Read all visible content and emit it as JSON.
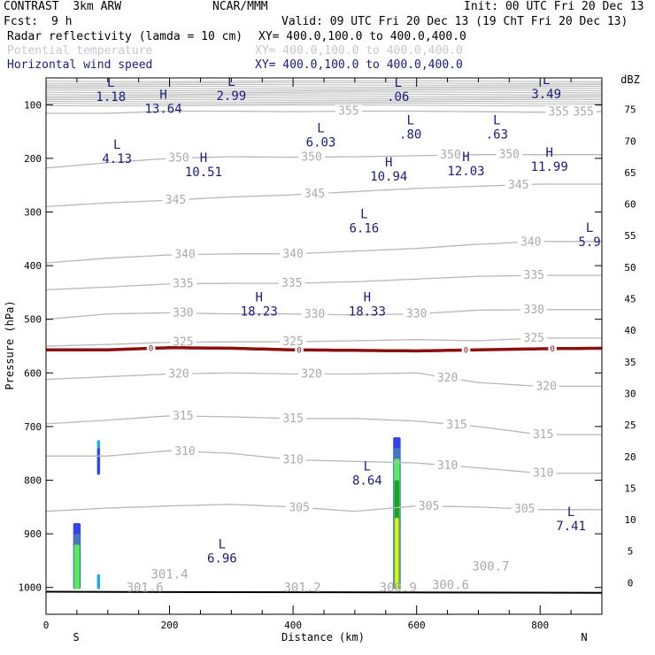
{
  "header": {
    "model": "CONTRAST  3km ARW",
    "org": "NCAR/MMM",
    "init": "Init: 00 UTC Fri 20 Dec 13",
    "fcst_label": "Fcst:",
    "fcst_value": "9 h",
    "valid": "Valid: 09 UTC Fri 20 Dec 13 (19 ChT Fri 20 Dec 13)"
  },
  "fields": [
    {
      "name": "Radar reflectivity (lamda = 10 cm)",
      "xy": "XY= 400.0,100.0 to 400.0,400.0",
      "color": "#000000"
    },
    {
      "name": "Potential temperature",
      "xy": "XY= 400.0,100.0 to 400.0,400.0",
      "color": "#c8c8c8"
    },
    {
      "name": "Horizontal wind speed",
      "xy": "XY= 400.0,100.0 to 400.0,400.0",
      "color": "#1a1a80"
    }
  ],
  "colorbar": {
    "unit": "dBZ",
    "levels": [
      "75",
      "70",
      "65",
      "60",
      "55",
      "50",
      "45",
      "40",
      "35",
      "30",
      "25",
      "20",
      "15",
      "10",
      "5",
      "0"
    ],
    "colors": [
      "#ffffff",
      "#bb88cc",
      "#993399",
      "#994455",
      "#aa0000",
      "#ee1111",
      "#ff5511",
      "#ff9944",
      "#ffcc33",
      "#eeee11",
      "#11aa11",
      "#55ee55",
      "#4477bb",
      "#3344ee",
      "#22aaee",
      "#77ffff",
      "#ffffff"
    ]
  },
  "chart_data": {
    "type": "cross-section",
    "xlabel": "Distance (km)",
    "ylabel": "Pressure (hPa)",
    "xlim": [
      0,
      900
    ],
    "ylim": [
      1050,
      50
    ],
    "x_ticks": [
      "0",
      "200",
      "400",
      "600",
      "800"
    ],
    "x_tick_values": [
      0,
      200,
      400,
      600,
      800
    ],
    "y_ticks": [
      "100",
      "200",
      "300",
      "400",
      "500",
      "600",
      "700",
      "800",
      "900",
      "1000"
    ],
    "y_tick_values": [
      100,
      200,
      300,
      400,
      500,
      600,
      700,
      800,
      900,
      1000
    ],
    "x_end_labels": [
      "S",
      "N"
    ],
    "theta_contours": [
      {
        "value": 355,
        "label": "355",
        "y": [
          116,
          116,
          112,
          112,
          113,
          112,
          112,
          113,
          114,
          113
        ],
        "labels_at": [
          490,
          830,
          870
        ]
      },
      {
        "value": 350,
        "label": "350",
        "y": [
          218,
          208,
          200,
          197,
          198,
          197,
          195,
          193,
          193,
          193
        ],
        "labels_at": [
          215,
          430,
          655,
          750
        ]
      },
      {
        "value": 345,
        "label": "345",
        "y": [
          290,
          283,
          278,
          272,
          268,
          262,
          256,
          252,
          248,
          248
        ],
        "labels_at": [
          210,
          435,
          765
        ]
      },
      {
        "value": 340,
        "label": "340",
        "y": [
          395,
          386,
          380,
          378,
          378,
          373,
          368,
          360,
          355,
          355
        ],
        "labels_at": [
          225,
          400,
          785
        ]
      },
      {
        "value": 335,
        "label": "335",
        "y": [
          445,
          440,
          434,
          433,
          433,
          430,
          425,
          420,
          418,
          418
        ],
        "labels_at": [
          222,
          398,
          790
        ]
      },
      {
        "value": 330,
        "label": "330",
        "y": [
          500,
          490,
          488,
          490,
          490,
          492,
          490,
          483,
          482,
          482
        ],
        "labels_at": [
          222,
          435,
          600,
          790
        ]
      },
      {
        "value": 325,
        "label": "325",
        "y": [
          550,
          547,
          543,
          542,
          542,
          540,
          538,
          540,
          535,
          535
        ],
        "labels_at": [
          222,
          400,
          790
        ]
      },
      {
        "value": 320,
        "label": "320",
        "y": [
          612,
          607,
          602,
          600,
          602,
          602,
          600,
          618,
          625,
          625
        ],
        "labels_at": [
          215,
          430,
          650,
          810
        ]
      },
      {
        "value": 315,
        "label": "315",
        "y": [
          695,
          688,
          680,
          682,
          685,
          685,
          690,
          700,
          715,
          715
        ],
        "labels_at": [
          222,
          400,
          665,
          805
        ]
      },
      {
        "value": 310,
        "label": "310",
        "y": [
          755,
          755,
          745,
          750,
          762,
          765,
          768,
          777,
          787,
          787
        ],
        "labels_at": [
          225,
          400,
          650,
          805
        ]
      },
      {
        "value": 305,
        "label": "305",
        "y": [
          858,
          852,
          848,
          845,
          850,
          858,
          848,
          850,
          855,
          855
        ],
        "labels_at": [
          410,
          620,
          775
        ]
      }
    ],
    "theta_centers": [
      {
        "x": 200,
        "p": 975,
        "text": "301.4"
      },
      {
        "x": 720,
        "p": 960,
        "text": "300.7"
      },
      {
        "x": 160,
        "p": 1000,
        "text": "301.6"
      },
      {
        "x": 415,
        "p": 1000,
        "text": "301.2"
      },
      {
        "x": 570,
        "p": 1000,
        "text": "300.9"
      },
      {
        "x": 655,
        "p": 995,
        "text": "300.6"
      }
    ],
    "wind_centers": [
      {
        "x": 105,
        "p": 80,
        "type": "L",
        "value": "1.18"
      },
      {
        "x": 190,
        "p": 102,
        "type": "H",
        "value": "13.64"
      },
      {
        "x": 300,
        "p": 78,
        "type": "L",
        "value": "2.99"
      },
      {
        "x": 570,
        "p": 80,
        "type": "L",
        "value": ".06"
      },
      {
        "x": 810,
        "p": 75,
        "type": "L",
        "value": "3.49"
      },
      {
        "x": 445,
        "p": 165,
        "type": "L",
        "value": "6.03"
      },
      {
        "x": 590,
        "p": 150,
        "type": "L",
        "value": ".80"
      },
      {
        "x": 730,
        "p": 150,
        "type": "L",
        "value": ".63"
      },
      {
        "x": 115,
        "p": 195,
        "type": "L",
        "value": "4.13"
      },
      {
        "x": 255,
        "p": 220,
        "type": "H",
        "value": "10.51"
      },
      {
        "x": 555,
        "p": 228,
        "type": "H",
        "value": "10.94"
      },
      {
        "x": 680,
        "p": 218,
        "type": "H",
        "value": "12.03"
      },
      {
        "x": 815,
        "p": 210,
        "type": "H",
        "value": "11.99"
      },
      {
        "x": 515,
        "p": 325,
        "type": "L",
        "value": "6.16"
      },
      {
        "x": 880,
        "p": 350,
        "type": "L",
        "value": "5.9"
      },
      {
        "x": 345,
        "p": 480,
        "type": "H",
        "value": "18.23"
      },
      {
        "x": 520,
        "p": 480,
        "type": "H",
        "value": "18.33"
      },
      {
        "x": 520,
        "p": 795,
        "type": "L",
        "value": "8.64"
      },
      {
        "x": 850,
        "p": 880,
        "type": "L",
        "value": "7.41"
      },
      {
        "x": 285,
        "p": 940,
        "type": "L",
        "value": "6.96"
      }
    ],
    "zero_line": {
      "label": "0",
      "y": [
        557,
        557,
        553,
        554,
        557,
        558,
        559,
        557,
        555,
        554
      ],
      "labels_at": [
        170,
        410,
        680,
        820
      ]
    },
    "reflectivity_cells": [
      {
        "x": 50,
        "p_top": 880,
        "p_bottom": 1003,
        "width_km": 12,
        "layers": [
          {
            "dbz": 10,
            "top": 880
          },
          {
            "dbz": 15,
            "top": 900
          },
          {
            "dbz": 20,
            "top": 920
          }
        ]
      },
      {
        "x": 85,
        "p_top": 725,
        "p_bottom": 790,
        "width_km": 5,
        "layers": [
          {
            "dbz": 5,
            "top": 725
          },
          {
            "dbz": 10,
            "top": 740
          }
        ]
      },
      {
        "x": 85,
        "p_top": 975,
        "p_bottom": 1003,
        "width_km": 5,
        "layers": [
          {
            "dbz": 5,
            "top": 975
          }
        ]
      },
      {
        "x": 568,
        "p_top": 720,
        "p_bottom": 1003,
        "width_km": 12,
        "layers": [
          {
            "dbz": 10,
            "top": 720
          },
          {
            "dbz": 15,
            "top": 740
          },
          {
            "dbz": 20,
            "top": 760
          },
          {
            "dbz": 25,
            "top": 800
          },
          {
            "dbz": 30,
            "top": 870
          }
        ]
      }
    ]
  }
}
